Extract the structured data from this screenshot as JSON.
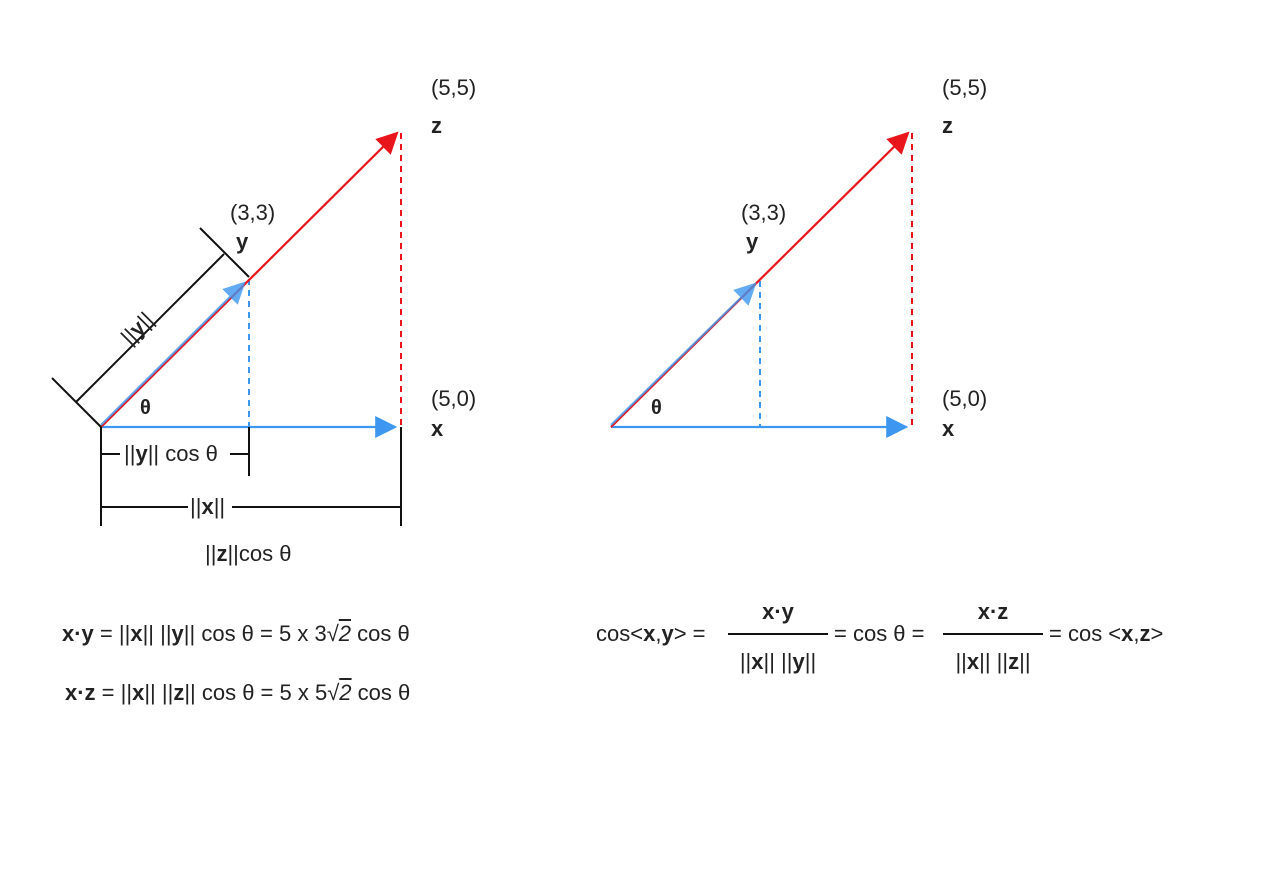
{
  "left_diagram": {
    "z_coord": "(5,5)",
    "z_name": "z",
    "y_coord": "(3,3)",
    "y_name": "y",
    "x_coord": "(5,0)",
    "x_name": "x",
    "theta": "θ",
    "norm_y_a": "||",
    "norm_y_b": "y",
    "norm_y_c": "||",
    "proj_a": "||",
    "proj_b": "y",
    "proj_c": "|| cos θ",
    "norm_x_a": "||",
    "norm_x_b": "x",
    "norm_x_c": "||",
    "normz_a": "||",
    "normz_b": "z",
    "normz_c": "||cos θ"
  },
  "right_diagram": {
    "z_coord": "(5,5)",
    "z_name": "z",
    "y_coord": "(3,3)",
    "y_name": "y",
    "x_coord": "(5,0)",
    "x_name": "x",
    "theta": "θ"
  },
  "equations": {
    "eq1": {
      "a": "x·y",
      "b": " = ||",
      "c": "x",
      "d": "|| ||",
      "e": "y",
      "f": "|| cos θ = 5 x 3",
      "g": "√",
      "h": "2",
      "i": " cos θ"
    },
    "eq2": {
      "a": "x·z",
      "b": " = ||",
      "c": "x",
      "d": "|| ||",
      "e": "z",
      "f": "|| cos θ = 5 x 5",
      "g": "√",
      "h": "2",
      "i": " cos θ"
    },
    "cos_prefix": "cos<",
    "cos_x": "x",
    "cos_comma": ",",
    "cos_y": "y",
    "cos_suffix": "> =",
    "frac1_num": "x·y",
    "frac1_den_a": "||",
    "frac1_den_b": "x",
    "frac1_den_c": "|| ||",
    "frac1_den_d": "y",
    "frac1_den_e": "||",
    "mid": "= cos θ =",
    "frac2_num": "x·z",
    "frac2_den_a": "||",
    "frac2_den_b": "x",
    "frac2_den_c": "|| ||",
    "frac2_den_d": "z",
    "frac2_den_e": "||",
    "end_a": "= cos <",
    "end_x": "x",
    "end_comma": ",",
    "end_z": "z",
    "end_b": ">"
  },
  "colors": {
    "blue": "#3d97f0",
    "red": "#e8161b",
    "black": "#111111"
  }
}
